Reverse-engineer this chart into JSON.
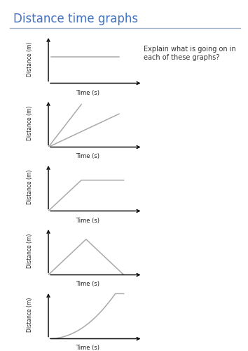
{
  "title": "Distance time graphs",
  "title_color": "#4472c4",
  "question_text": "Explain what is going on in\neach of these graphs?",
  "xlabel": "Time (s)",
  "ylabel": "Distance (m)",
  "bg_color": "#ffffff",
  "line_color": "#aaaaaa",
  "axis_color": "#111111",
  "separator_color": "#a0b4cc",
  "graphs": [
    {
      "type": "horizontal"
    },
    {
      "type": "two_lines"
    },
    {
      "type": "line_then_flat"
    },
    {
      "type": "triangle"
    },
    {
      "type": "curve"
    }
  ]
}
